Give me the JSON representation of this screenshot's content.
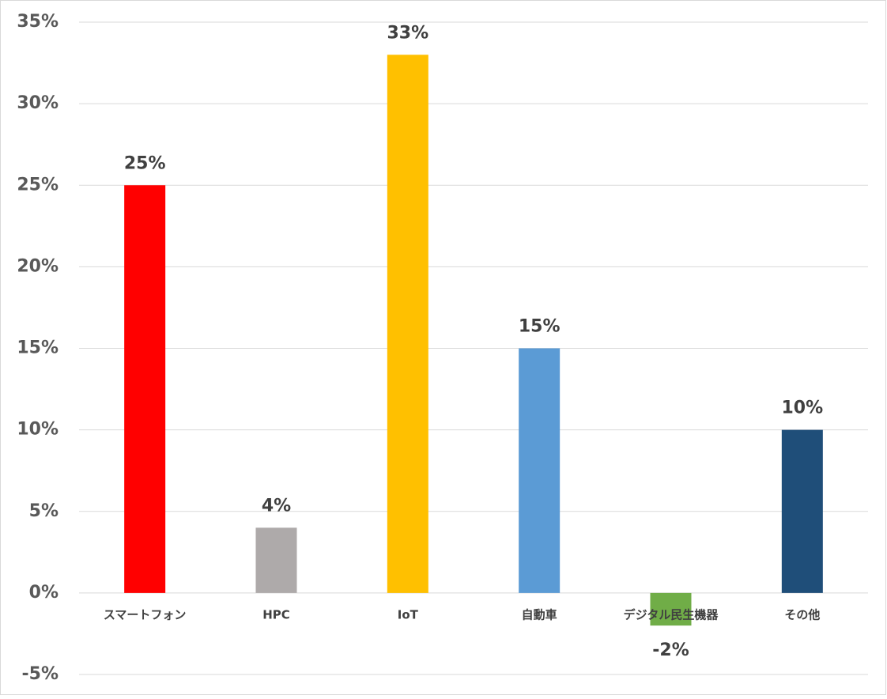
{
  "chart_data": {
    "type": "bar",
    "categories": [
      "スマートフォン",
      "HPC",
      "IoT",
      "自動車",
      "デジタル民生機器",
      "その他"
    ],
    "values": [
      25,
      4,
      33,
      15,
      -2,
      10
    ],
    "value_labels": [
      "25%",
      "4%",
      "33%",
      "15%",
      "-2%",
      "10%"
    ],
    "colors": [
      "#ff0000",
      "#aeaaaa",
      "#ffc000",
      "#5b9bd5",
      "#70ad47",
      "#1f4e79"
    ],
    "ylim": [
      -5,
      35
    ],
    "yticks": [
      {
        "value": -5,
        "label": "-5%"
      },
      {
        "value": 0,
        "label": "0%"
      },
      {
        "value": 5,
        "label": "5%"
      },
      {
        "value": 10,
        "label": "10%"
      },
      {
        "value": 15,
        "label": "15%"
      },
      {
        "value": 20,
        "label": "20%"
      },
      {
        "value": 25,
        "label": "25%"
      },
      {
        "value": 30,
        "label": "30%"
      },
      {
        "value": 35,
        "label": "35%"
      }
    ],
    "grid": true
  }
}
